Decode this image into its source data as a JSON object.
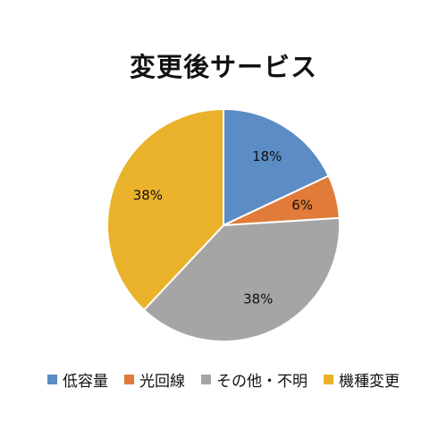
{
  "chart_data": {
    "type": "pie",
    "title": "変更後サービス",
    "slices": [
      {
        "label": "低容量",
        "value": 18,
        "display": "18%",
        "color": "#5B8CC4"
      },
      {
        "label": "光回線",
        "value": 6,
        "display": "6%",
        "color": "#E07B39"
      },
      {
        "label": "その他・不明",
        "value": 38,
        "display": "38%",
        "color": "#A5A5A5"
      },
      {
        "label": "機種変更",
        "value": 38,
        "display": "38%",
        "color": "#EAB22B"
      }
    ],
    "legend_position": "bottom",
    "start_angle_deg": 0,
    "direction": "clockwise"
  }
}
